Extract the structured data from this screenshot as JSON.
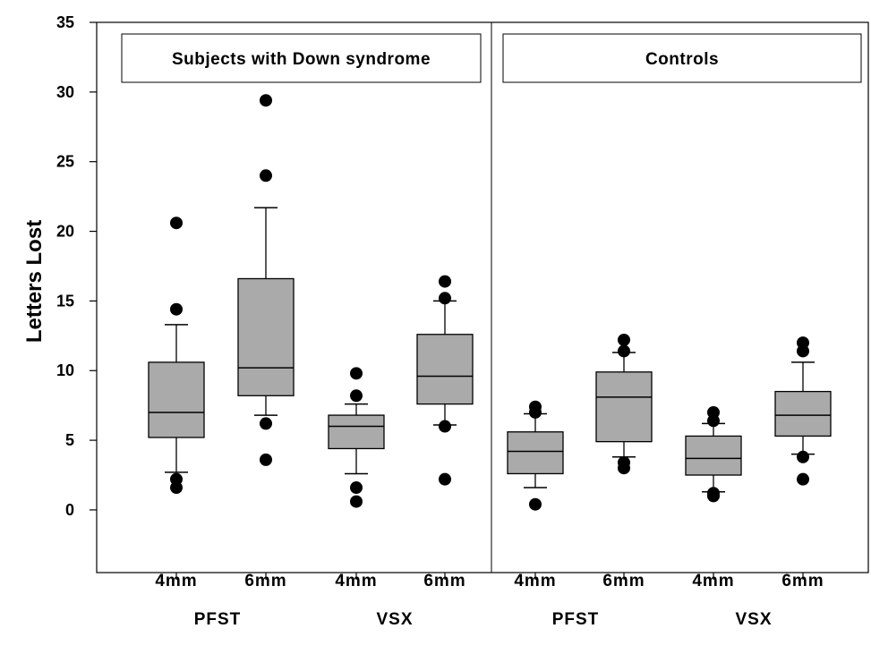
{
  "chart_data": {
    "type": "box",
    "ylabel": "Letters Lost",
    "ylim": [
      -4.5,
      35
    ],
    "yticks": [
      0,
      5,
      10,
      15,
      20,
      25,
      30,
      35
    ],
    "box_color": "#aaaaaa",
    "panels": [
      {
        "title": "Subjects with Down syndrome",
        "groups": [
          {
            "label": "PFST",
            "boxes": [
              {
                "label": "4mm",
                "whisker_low": 2.7,
                "q1": 5.2,
                "median": 7.0,
                "q3": 10.6,
                "whisker_high": 13.3,
                "outliers": [
                  1.6,
                  2.2,
                  14.4,
                  20.6
                ]
              },
              {
                "label": "6mm",
                "whisker_low": 6.8,
                "q1": 8.2,
                "median": 10.2,
                "q3": 16.6,
                "whisker_high": 21.7,
                "outliers": [
                  3.6,
                  6.2,
                  24.0,
                  29.4
                ]
              }
            ]
          },
          {
            "label": "VSX",
            "boxes": [
              {
                "label": "4mm",
                "whisker_low": 2.6,
                "q1": 4.4,
                "median": 6.0,
                "q3": 6.8,
                "whisker_high": 7.6,
                "outliers": [
                  0.6,
                  1.6,
                  8.2,
                  9.8
                ]
              },
              {
                "label": "6mm",
                "whisker_low": 6.1,
                "q1": 7.6,
                "median": 9.6,
                "q3": 12.6,
                "whisker_high": 15.0,
                "outliers": [
                  2.2,
                  6.0,
                  15.2,
                  16.4
                ]
              }
            ]
          }
        ]
      },
      {
        "title": "Controls",
        "groups": [
          {
            "label": "PFST",
            "boxes": [
              {
                "label": "4mm",
                "whisker_low": 1.6,
                "q1": 2.6,
                "median": 4.2,
                "q3": 5.6,
                "whisker_high": 6.9,
                "outliers": [
                  0.4,
                  7.0,
                  7.4
                ]
              },
              {
                "label": "6mm",
                "whisker_low": 3.8,
                "q1": 4.9,
                "median": 8.1,
                "q3": 9.9,
                "whisker_high": 11.3,
                "outliers": [
                  3.0,
                  3.4,
                  11.4,
                  12.2
                ]
              }
            ]
          },
          {
            "label": "VSX",
            "boxes": [
              {
                "label": "4mm",
                "whisker_low": 1.3,
                "q1": 2.5,
                "median": 3.7,
                "q3": 5.3,
                "whisker_high": 6.2,
                "outliers": [
                  1.0,
                  1.2,
                  6.4,
                  7.0
                ]
              },
              {
                "label": "6mm",
                "whisker_low": 4.0,
                "q1": 5.3,
                "median": 6.8,
                "q3": 8.5,
                "whisker_high": 10.6,
                "outliers": [
                  2.2,
                  3.8,
                  11.4,
                  12.0
                ]
              }
            ]
          }
        ]
      }
    ]
  }
}
